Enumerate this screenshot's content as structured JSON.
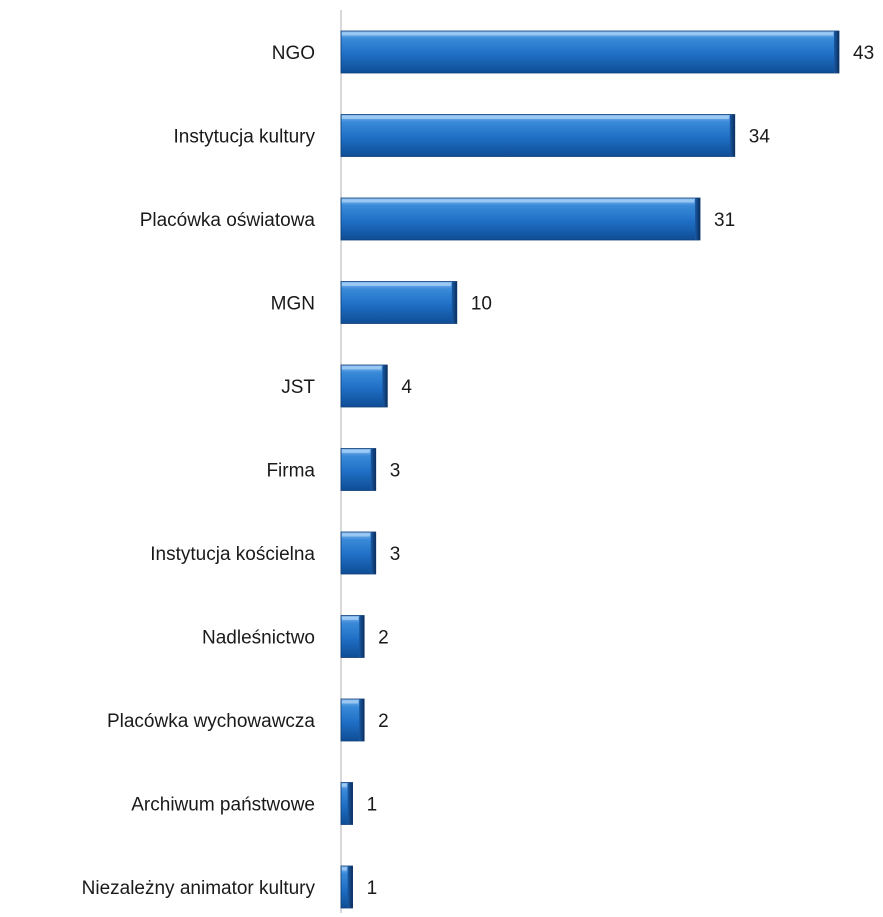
{
  "chart_data": {
    "type": "bar",
    "orientation": "horizontal",
    "categories": [
      "NGO",
      "Instytucja kultury",
      "Placówka oświatowa",
      "MGN",
      "JST",
      "Firma",
      "Instytucja kościelna",
      "Nadleśnictwo",
      "Placówka wychowawcza",
      "Archiwum państwowe",
      "Niezależny animator kultury"
    ],
    "values": [
      43,
      34,
      31,
      10,
      4,
      3,
      3,
      2,
      2,
      1,
      1
    ],
    "xlim": [
      0,
      43
    ],
    "grid": false,
    "legend": "none",
    "bar_color": "#1f6fc6",
    "bar_edge_color": "#0d3c78",
    "axis_color": "#bfbfbf"
  }
}
